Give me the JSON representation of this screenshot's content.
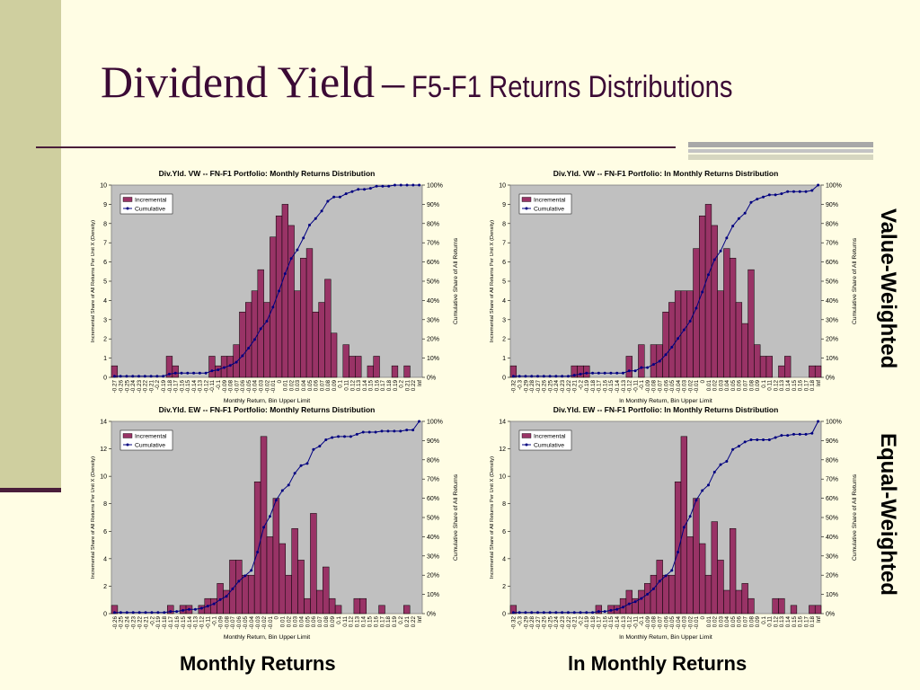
{
  "slide": {
    "title_main": "Dividend Yield",
    "title_dash": "–",
    "title_sub": "F5-F1 Returns Distributions",
    "right_label_top": "Value-Weighted",
    "right_label_bottom": "Equal-Weighted",
    "bottom_label_left": "Monthly Returns",
    "bottom_label_right": "ln Monthly Returns"
  },
  "colors": {
    "bar": "#993366",
    "line": "#000080",
    "plot_bg": "#c0c0c0",
    "background": "#fffde4",
    "title": "#3b0a35"
  },
  "chart_data": [
    {
      "type": "bar",
      "title": "Div.Yld. VW -- FN-F1 Portfolio: Monthly Returns Distribution",
      "xlabel": "Monthly Return, Bin Upper Limit",
      "ylabel": "Incremental Share of All Returns Per Unit X (Density)",
      "y2label": "Cumulative Share of All Returns",
      "ylim": [
        0,
        10
      ],
      "yticks": [
        "0",
        "1",
        "2",
        "3",
        "4",
        "5",
        "6",
        "7",
        "8",
        "9",
        "10"
      ],
      "y2ticks": [
        "0%",
        "10%",
        "20%",
        "30%",
        "40%",
        "50%",
        "60%",
        "70%",
        "80%",
        "90%",
        "100%"
      ],
      "grid": false,
      "legend_position": "top-left",
      "legend": [
        "Incremental",
        "Cumulative"
      ],
      "categories": [
        "-0.27",
        "-0.26",
        "-0.25",
        "-0.24",
        "-0.23",
        "-0.22",
        "-0.21",
        "-0.2",
        "-0.19",
        "-0.18",
        "-0.17",
        "-0.16",
        "-0.15",
        "-0.14",
        "-0.13",
        "-0.12",
        "-0.11",
        "-0.1",
        "-0.09",
        "-0.08",
        "-0.07",
        "-0.06",
        "-0.05",
        "-0.04",
        "-0.03",
        "-0.02",
        "-0.01",
        "0",
        "0.01",
        "0.02",
        "0.03",
        "0.04",
        "0.05",
        "0.06",
        "0.07",
        "0.08",
        "0.09",
        "0.1",
        "0.11",
        "0.12",
        "0.13",
        "0.14",
        "0.15",
        "0.16",
        "0.17",
        "0.18",
        "0.19",
        "0.2",
        "0.21",
        "0.22",
        "Inf"
      ],
      "series": [
        {
          "name": "Incremental",
          "kind": "bar",
          "values": [
            0.6,
            0,
            0,
            0,
            0,
            0,
            0,
            0,
            0,
            1.1,
            0.6,
            0,
            0,
            0,
            0,
            0,
            1.1,
            0.6,
            1.1,
            1.1,
            1.7,
            3.4,
            3.9,
            4.5,
            5.6,
            3.9,
            7.3,
            8.4,
            9.0,
            7.9,
            4.5,
            6.2,
            6.7,
            3.4,
            3.9,
            5.1,
            2.3,
            0,
            1.7,
            1.1,
            1.1,
            0,
            0.6,
            1.1,
            0,
            0,
            0.6,
            0,
            0.6,
            0,
            0
          ]
        },
        {
          "name": "Cumulative",
          "kind": "line",
          "values": [
            0.6,
            0.6,
            0.6,
            0.6,
            0.6,
            0.6,
            0.6,
            0.6,
            0.6,
            1.7,
            2.2,
            2.2,
            2.2,
            2.2,
            2.2,
            2.2,
            3.4,
            3.9,
            5.1,
            6.2,
            7.9,
            11.2,
            15.2,
            19.7,
            25.3,
            29.2,
            36.5,
            44.9,
            53.9,
            61.8,
            66.3,
            72.5,
            79.2,
            82.6,
            86.5,
            91.6,
            93.8,
            93.8,
            95.5,
            96.6,
            97.8,
            97.8,
            98.3,
            99.4,
            99.4,
            99.4,
            100,
            100,
            100,
            100,
            100
          ]
        }
      ]
    },
    {
      "type": "bar",
      "title": "Div.Yld. VW -- FN-F1 Portfolio: ln Monthly Returns Distribution",
      "xlabel": "ln Monthly Return, Bin Upper Limit",
      "ylabel": "Incremental Share of All Returns Per Unit X (Density)",
      "y2label": "Cumulative Share of All Returns",
      "ylim": [
        0,
        10
      ],
      "yticks": [
        "0",
        "1",
        "2",
        "3",
        "4",
        "5",
        "6",
        "7",
        "8",
        "9",
        "10"
      ],
      "y2ticks": [
        "0%",
        "10%",
        "20%",
        "30%",
        "40%",
        "50%",
        "60%",
        "70%",
        "80%",
        "90%",
        "100%"
      ],
      "grid": false,
      "legend_position": "top-left",
      "legend": [
        "Incremental",
        "Cumulative"
      ],
      "categories": [
        "-0.32",
        "-0.3",
        "-0.29",
        "-0.28",
        "-0.27",
        "-0.26",
        "-0.25",
        "-0.24",
        "-0.23",
        "-0.22",
        "-0.21",
        "-0.2",
        "-0.19",
        "-0.18",
        "-0.17",
        "-0.16",
        "-0.15",
        "-0.14",
        "-0.13",
        "-0.12",
        "-0.11",
        "-0.1",
        "-0.09",
        "-0.08",
        "-0.07",
        "-0.06",
        "-0.05",
        "-0.04",
        "-0.03",
        "-0.02",
        "-0.01",
        "0",
        "0.01",
        "0.02",
        "0.03",
        "0.04",
        "0.05",
        "0.06",
        "0.07",
        "0.08",
        "0.09",
        "0.1",
        "0.11",
        "0.12",
        "0.13",
        "0.14",
        "0.15",
        "0.16",
        "0.17",
        "0.18",
        "Inf"
      ],
      "series": [
        {
          "name": "Incremental",
          "kind": "bar",
          "values": [
            0.6,
            0,
            0,
            0,
            0,
            0,
            0,
            0,
            0,
            0,
            0.6,
            0.6,
            0.6,
            0,
            0,
            0,
            0,
            0,
            0,
            1.1,
            0,
            1.7,
            0,
            1.7,
            1.7,
            3.4,
            3.9,
            4.5,
            4.5,
            4.5,
            6.7,
            8.4,
            9.0,
            7.9,
            4.5,
            6.7,
            6.2,
            3.9,
            2.8,
            5.6,
            1.7,
            1.1,
            1.1,
            0,
            0.6,
            1.1,
            0,
            0,
            0,
            0.6,
            0.6
          ]
        },
        {
          "name": "Cumulative",
          "kind": "line",
          "values": [
            0.6,
            0.6,
            0.6,
            0.6,
            0.6,
            0.6,
            0.6,
            0.6,
            0.6,
            0.6,
            1.1,
            1.7,
            2.2,
            2.2,
            2.2,
            2.2,
            2.2,
            2.2,
            2.2,
            3.4,
            3.4,
            5.1,
            5.1,
            6.7,
            8.4,
            11.8,
            15.7,
            20.2,
            24.7,
            29.2,
            36.0,
            44.4,
            53.4,
            61.2,
            65.7,
            72.5,
            78.7,
            82.6,
            85.4,
            91.0,
            92.7,
            93.8,
            94.9,
            94.9,
            95.5,
            96.6,
            96.6,
            96.6,
            96.6,
            97.2,
            100
          ]
        }
      ]
    },
    {
      "type": "bar",
      "title": "Div.Yld. EW -- FN-F1 Portfolio: Monthly Returns Distribution",
      "xlabel": "Monthly Return, Bin Upper Limit",
      "ylabel": "Incremental Share of All Returns Per Unit X (Density)",
      "y2label": "Cumulative Share of All Returns",
      "ylim": [
        0,
        14
      ],
      "yticks": [
        "0",
        "2",
        "4",
        "6",
        "8",
        "10",
        "12",
        "14"
      ],
      "y2ticks": [
        "0%",
        "10%",
        "20%",
        "30%",
        "40%",
        "50%",
        "60%",
        "70%",
        "80%",
        "90%",
        "100%"
      ],
      "grid": false,
      "legend_position": "top-left",
      "legend": [
        "Incremental",
        "Cumulative"
      ],
      "categories": [
        "-0.26",
        "-0.25",
        "-0.24",
        "-0.23",
        "-0.22",
        "-0.21",
        "-0.2",
        "-0.19",
        "-0.18",
        "-0.17",
        "-0.16",
        "-0.15",
        "-0.14",
        "-0.13",
        "-0.12",
        "-0.11",
        "-0.1",
        "-0.09",
        "-0.08",
        "-0.07",
        "-0.06",
        "-0.05",
        "-0.04",
        "-0.03",
        "-0.02",
        "-0.01",
        "0",
        "0.01",
        "0.02",
        "0.03",
        "0.04",
        "0.05",
        "0.06",
        "0.07",
        "0.08",
        "0.09",
        "0.1",
        "0.11",
        "0.12",
        "0.13",
        "0.14",
        "0.15",
        "0.16",
        "0.17",
        "0.18",
        "0.19",
        "0.2",
        "0.21",
        "0.22",
        "Inf"
      ],
      "series": [
        {
          "name": "Incremental",
          "kind": "bar",
          "values": [
            0.6,
            0,
            0,
            0,
            0,
            0,
            0,
            0,
            0,
            0.6,
            0,
            0.6,
            0.6,
            0,
            0.6,
            1.1,
            1.1,
            2.2,
            1.7,
            3.9,
            3.9,
            2.8,
            2.8,
            9.6,
            12.9,
            5.6,
            8.4,
            5.1,
            2.8,
            6.2,
            3.9,
            1.1,
            7.3,
            1.7,
            3.4,
            1.1,
            0.6,
            0,
            0,
            1.1,
            1.1,
            0,
            0,
            0.6,
            0,
            0,
            0,
            0.6,
            0,
            0
          ]
        },
        {
          "name": "Cumulative",
          "kind": "line",
          "values": [
            0.6,
            0.6,
            0.6,
            0.6,
            0.6,
            0.6,
            0.6,
            0.6,
            0.6,
            1.1,
            1.1,
            1.7,
            2.2,
            2.2,
            2.8,
            3.9,
            5.1,
            7.3,
            9.0,
            12.9,
            16.9,
            19.7,
            22.5,
            32.0,
            44.9,
            50.6,
            59.0,
            64.0,
            66.9,
            73.0,
            77.0,
            78.1,
            85.4,
            87.1,
            90.4,
            91.6,
            92.1,
            92.1,
            92.1,
            93.3,
            94.4,
            94.4,
            94.4,
            94.9,
            94.9,
            94.9,
            94.9,
            95.5,
            95.5,
            100
          ]
        }
      ]
    },
    {
      "type": "bar",
      "title": "Div.Yld. EW -- FN-F1 Portfolio: ln Monthly Returns Distribution",
      "xlabel": "ln Monthly Return, Bin Upper Limit",
      "ylabel": "Incremental Share of All Returns Per Unit X (Density)",
      "y2label": "Cumulative Share of All Returns",
      "ylim": [
        0,
        14
      ],
      "yticks": [
        "0",
        "2",
        "4",
        "6",
        "8",
        "10",
        "12",
        "14"
      ],
      "y2ticks": [
        "0%",
        "10%",
        "20%",
        "30%",
        "40%",
        "50%",
        "60%",
        "70%",
        "80%",
        "90%",
        "100%"
      ],
      "grid": false,
      "legend_position": "top-left",
      "legend": [
        "Incremental",
        "Cumulative"
      ],
      "categories": [
        "-0.32",
        "-0.3",
        "-0.29",
        "-0.28",
        "-0.27",
        "-0.26",
        "-0.25",
        "-0.24",
        "-0.23",
        "-0.22",
        "-0.21",
        "-0.2",
        "-0.19",
        "-0.18",
        "-0.17",
        "-0.16",
        "-0.15",
        "-0.14",
        "-0.13",
        "-0.12",
        "-0.11",
        "-0.1",
        "-0.09",
        "-0.08",
        "-0.07",
        "-0.06",
        "-0.05",
        "-0.04",
        "-0.03",
        "-0.02",
        "-0.01",
        "0",
        "0.01",
        "0.02",
        "0.03",
        "0.04",
        "0.05",
        "0.06",
        "0.07",
        "0.08",
        "0.09",
        "0.1",
        "0.11",
        "0.12",
        "0.13",
        "0.14",
        "0.15",
        "0.16",
        "0.17",
        "0.18",
        "Inf"
      ],
      "series": [
        {
          "name": "Incremental",
          "kind": "bar",
          "values": [
            0.6,
            0,
            0,
            0,
            0,
            0,
            0,
            0,
            0,
            0,
            0,
            0,
            0,
            0,
            0.6,
            0,
            0.6,
            0.6,
            1.1,
            1.7,
            1.1,
            1.7,
            2.2,
            2.8,
            3.9,
            2.8,
            2.8,
            9.6,
            12.9,
            5.6,
            8.4,
            5.1,
            2.8,
            6.7,
            3.9,
            1.7,
            6.2,
            1.7,
            2.2,
            1.1,
            0,
            0,
            0,
            1.1,
            1.1,
            0,
            0.6,
            0,
            0,
            0.6,
            0.6
          ]
        },
        {
          "name": "Cumulative",
          "kind": "line",
          "values": [
            0.6,
            0.6,
            0.6,
            0.6,
            0.6,
            0.6,
            0.6,
            0.6,
            0.6,
            0.6,
            0.6,
            0.6,
            0.6,
            0.6,
            1.1,
            1.1,
            1.7,
            2.2,
            3.4,
            5.1,
            6.2,
            7.9,
            10.1,
            12.9,
            16.9,
            19.7,
            22.5,
            32.0,
            44.9,
            50.6,
            59.0,
            64.0,
            66.9,
            73.6,
            77.5,
            79.2,
            85.4,
            87.1,
            89.3,
            90.4,
            90.4,
            90.4,
            90.4,
            91.6,
            92.7,
            92.7,
            93.3,
            93.3,
            93.3,
            93.8,
            100
          ]
        }
      ]
    }
  ]
}
